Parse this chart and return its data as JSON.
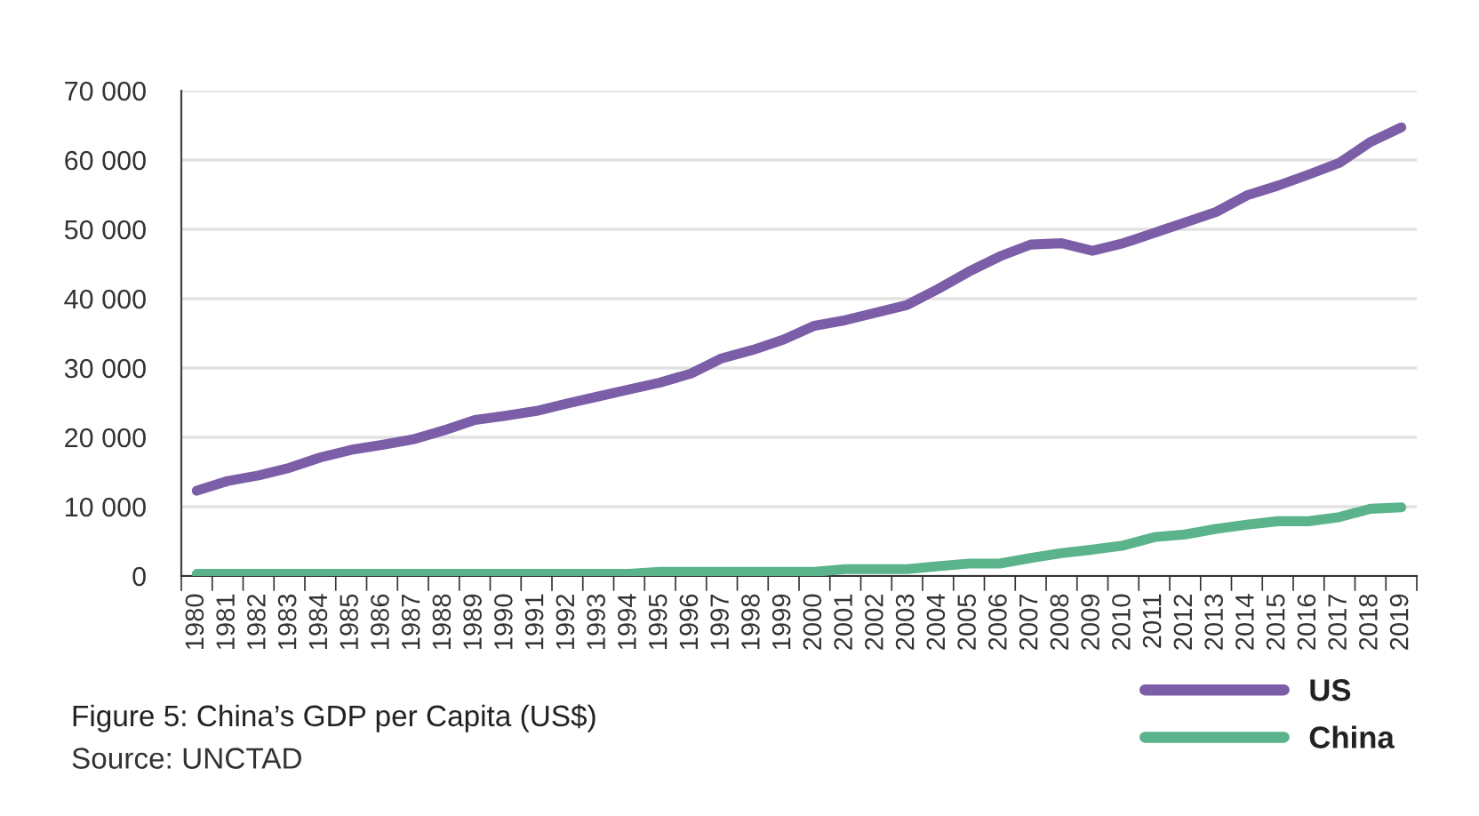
{
  "chart_data": {
    "type": "line",
    "title": "Figure 5: China’s GDP per Capita (US$)",
    "annotations": [
      "Source: UNCTAD"
    ],
    "categories": [
      "1980",
      "1981",
      "1982",
      "1983",
      "1984",
      "1985",
      "1986",
      "1987",
      "1988",
      "1989",
      "1990",
      "1991",
      "1992",
      "1993",
      "1994",
      "1995",
      "1996",
      "1997",
      "1998",
      "1999",
      "2000",
      "2001",
      "2002",
      "2003",
      "2004",
      "2005",
      "2006",
      "2007",
      "2008",
      "2009",
      "2010",
      "2011",
      "2012",
      "2013",
      "2014",
      "2015",
      "2016",
      "2017",
      "2018",
      "2019"
    ],
    "series": [
      {
        "name": "US",
        "color": "#7b5ea7",
        "values": [
          12300,
          13700,
          14500,
          15600,
          17100,
          18200,
          18900,
          19700,
          21000,
          22500,
          23100,
          23800,
          24900,
          25900,
          26900,
          27900,
          29200,
          31400,
          32600,
          34100,
          36100,
          36900,
          38000,
          39100,
          41400,
          43900,
          46100,
          47800,
          48000,
          46900,
          48000,
          49500,
          51000,
          52500,
          54900,
          56300,
          57900,
          59600,
          62600,
          64700
        ]
      },
      {
        "name": "China",
        "color": "#5ab38a",
        "values": [
          300,
          300,
          300,
          300,
          300,
          300,
          300,
          300,
          300,
          300,
          300,
          300,
          300,
          300,
          300,
          600,
          600,
          600,
          600,
          600,
          600,
          1000,
          1000,
          1000,
          1400,
          1800,
          1800,
          2600,
          3300,
          3800,
          4400,
          5600,
          6000,
          6800,
          7400,
          7900,
          7900,
          8500,
          9700,
          9900
        ]
      }
    ],
    "ylim": [
      0,
      70000
    ],
    "yticks": [
      0,
      {
        "value": 10000,
        "label": "10 000"
      },
      {
        "value": 20000,
        "label": "20 000"
      },
      {
        "value": 30000,
        "label": "30 000"
      },
      {
        "value": 40000,
        "label": "40 000"
      },
      {
        "value": 50000,
        "label": "50 000"
      },
      {
        "value": 60000,
        "label": "60 000"
      },
      {
        "value": 70000,
        "label": "70 000"
      }
    ],
    "grid": "y",
    "legend": "bottom right",
    "marker": "none",
    "line_style": "solid"
  }
}
